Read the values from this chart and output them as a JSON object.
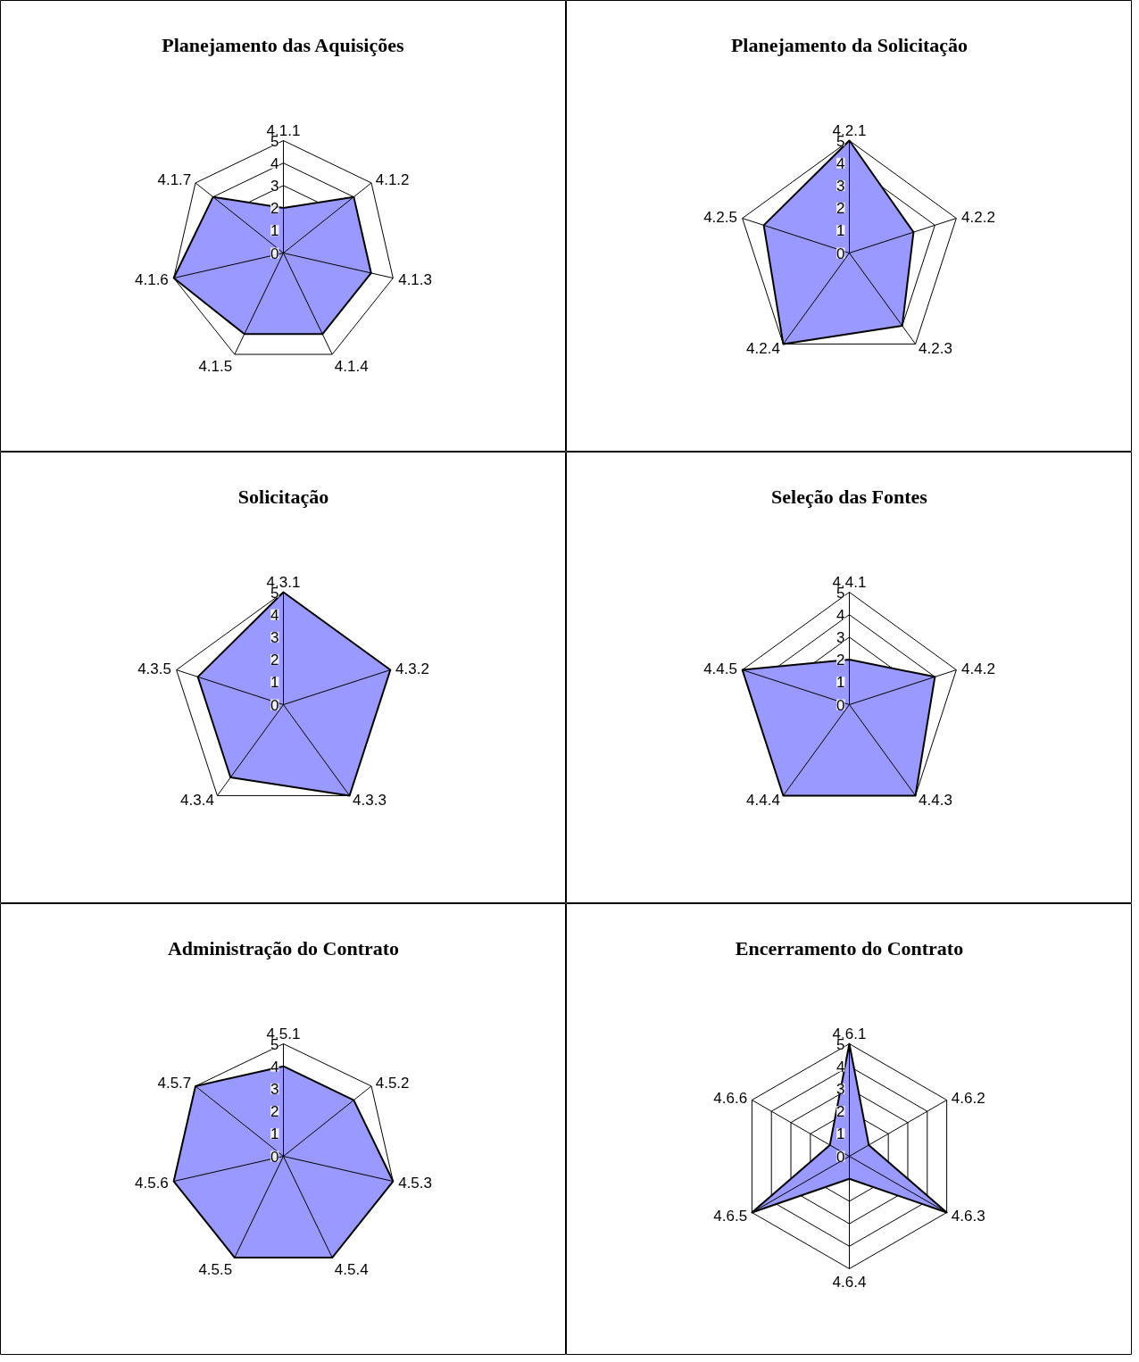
{
  "chart_data": [
    {
      "type": "radar",
      "title": "Planejamento das Aquisições",
      "categories": [
        "4.1.1",
        "4.1.2",
        "4.1.3",
        "4.1.4",
        "4.1.5",
        "4.1.6",
        "4.1.7"
      ],
      "ylim": [
        0,
        5
      ],
      "yticks": [
        0,
        1,
        2,
        3,
        4,
        5
      ],
      "grid": true,
      "series": [
        {
          "color": "#9999ff",
          "values": [
            2,
            4,
            4,
            4,
            4,
            5,
            4
          ]
        }
      ]
    },
    {
      "type": "radar",
      "title": "Planejamento da Solicitação",
      "categories": [
        "4.2.1",
        "4.2.2",
        "4.2.3",
        "4.2.4",
        "4.2.5"
      ],
      "ylim": [
        0,
        5
      ],
      "yticks": [
        0,
        1,
        2,
        3,
        4,
        5
      ],
      "grid": true,
      "series": [
        {
          "color": "#9999ff",
          "values": [
            5,
            3,
            4,
            5,
            4
          ]
        }
      ]
    },
    {
      "type": "radar",
      "title": "Solicitação",
      "categories": [
        "4.3.1",
        "4.3.2",
        "4.3.3",
        "4.3.4",
        "4.3.5"
      ],
      "ylim": [
        0,
        5
      ],
      "yticks": [
        0,
        1,
        2,
        3,
        4,
        5
      ],
      "grid": true,
      "series": [
        {
          "color": "#9999ff",
          "values": [
            5,
            5,
            5,
            4,
            4
          ]
        }
      ]
    },
    {
      "type": "radar",
      "title": "Seleção das Fontes",
      "categories": [
        "4.4.1",
        "4.4.2",
        "4.4.3",
        "4.4.4",
        "4.4.5"
      ],
      "ylim": [
        0,
        5
      ],
      "yticks": [
        0,
        1,
        2,
        3,
        4,
        5
      ],
      "grid": true,
      "series": [
        {
          "color": "#9999ff",
          "values": [
            2,
            4,
            5,
            5,
            5
          ]
        }
      ]
    },
    {
      "type": "radar",
      "title": "Administração do Contrato",
      "categories": [
        "4.5.1",
        "4.5.2",
        "4.5.3",
        "4.5.4",
        "4.5.5",
        "4.5.6",
        "4.5.7"
      ],
      "ylim": [
        0,
        5
      ],
      "yticks": [
        0,
        1,
        2,
        3,
        4,
        5
      ],
      "grid": true,
      "series": [
        {
          "color": "#9999ff",
          "values": [
            4,
            4,
            5,
            5,
            5,
            5,
            5
          ]
        }
      ]
    },
    {
      "type": "radar",
      "title": "Encerramento do Contrato",
      "categories": [
        "4.6.1",
        "4.6.2",
        "4.6.3",
        "4.6.4",
        "4.6.5",
        "4.6.6"
      ],
      "ylim": [
        0,
        5
      ],
      "yticks": [
        0,
        1,
        2,
        3,
        4,
        5
      ],
      "grid": true,
      "series": [
        {
          "color": "#9999ff",
          "values": [
            5,
            1,
            5,
            1,
            5,
            1
          ]
        }
      ]
    }
  ]
}
